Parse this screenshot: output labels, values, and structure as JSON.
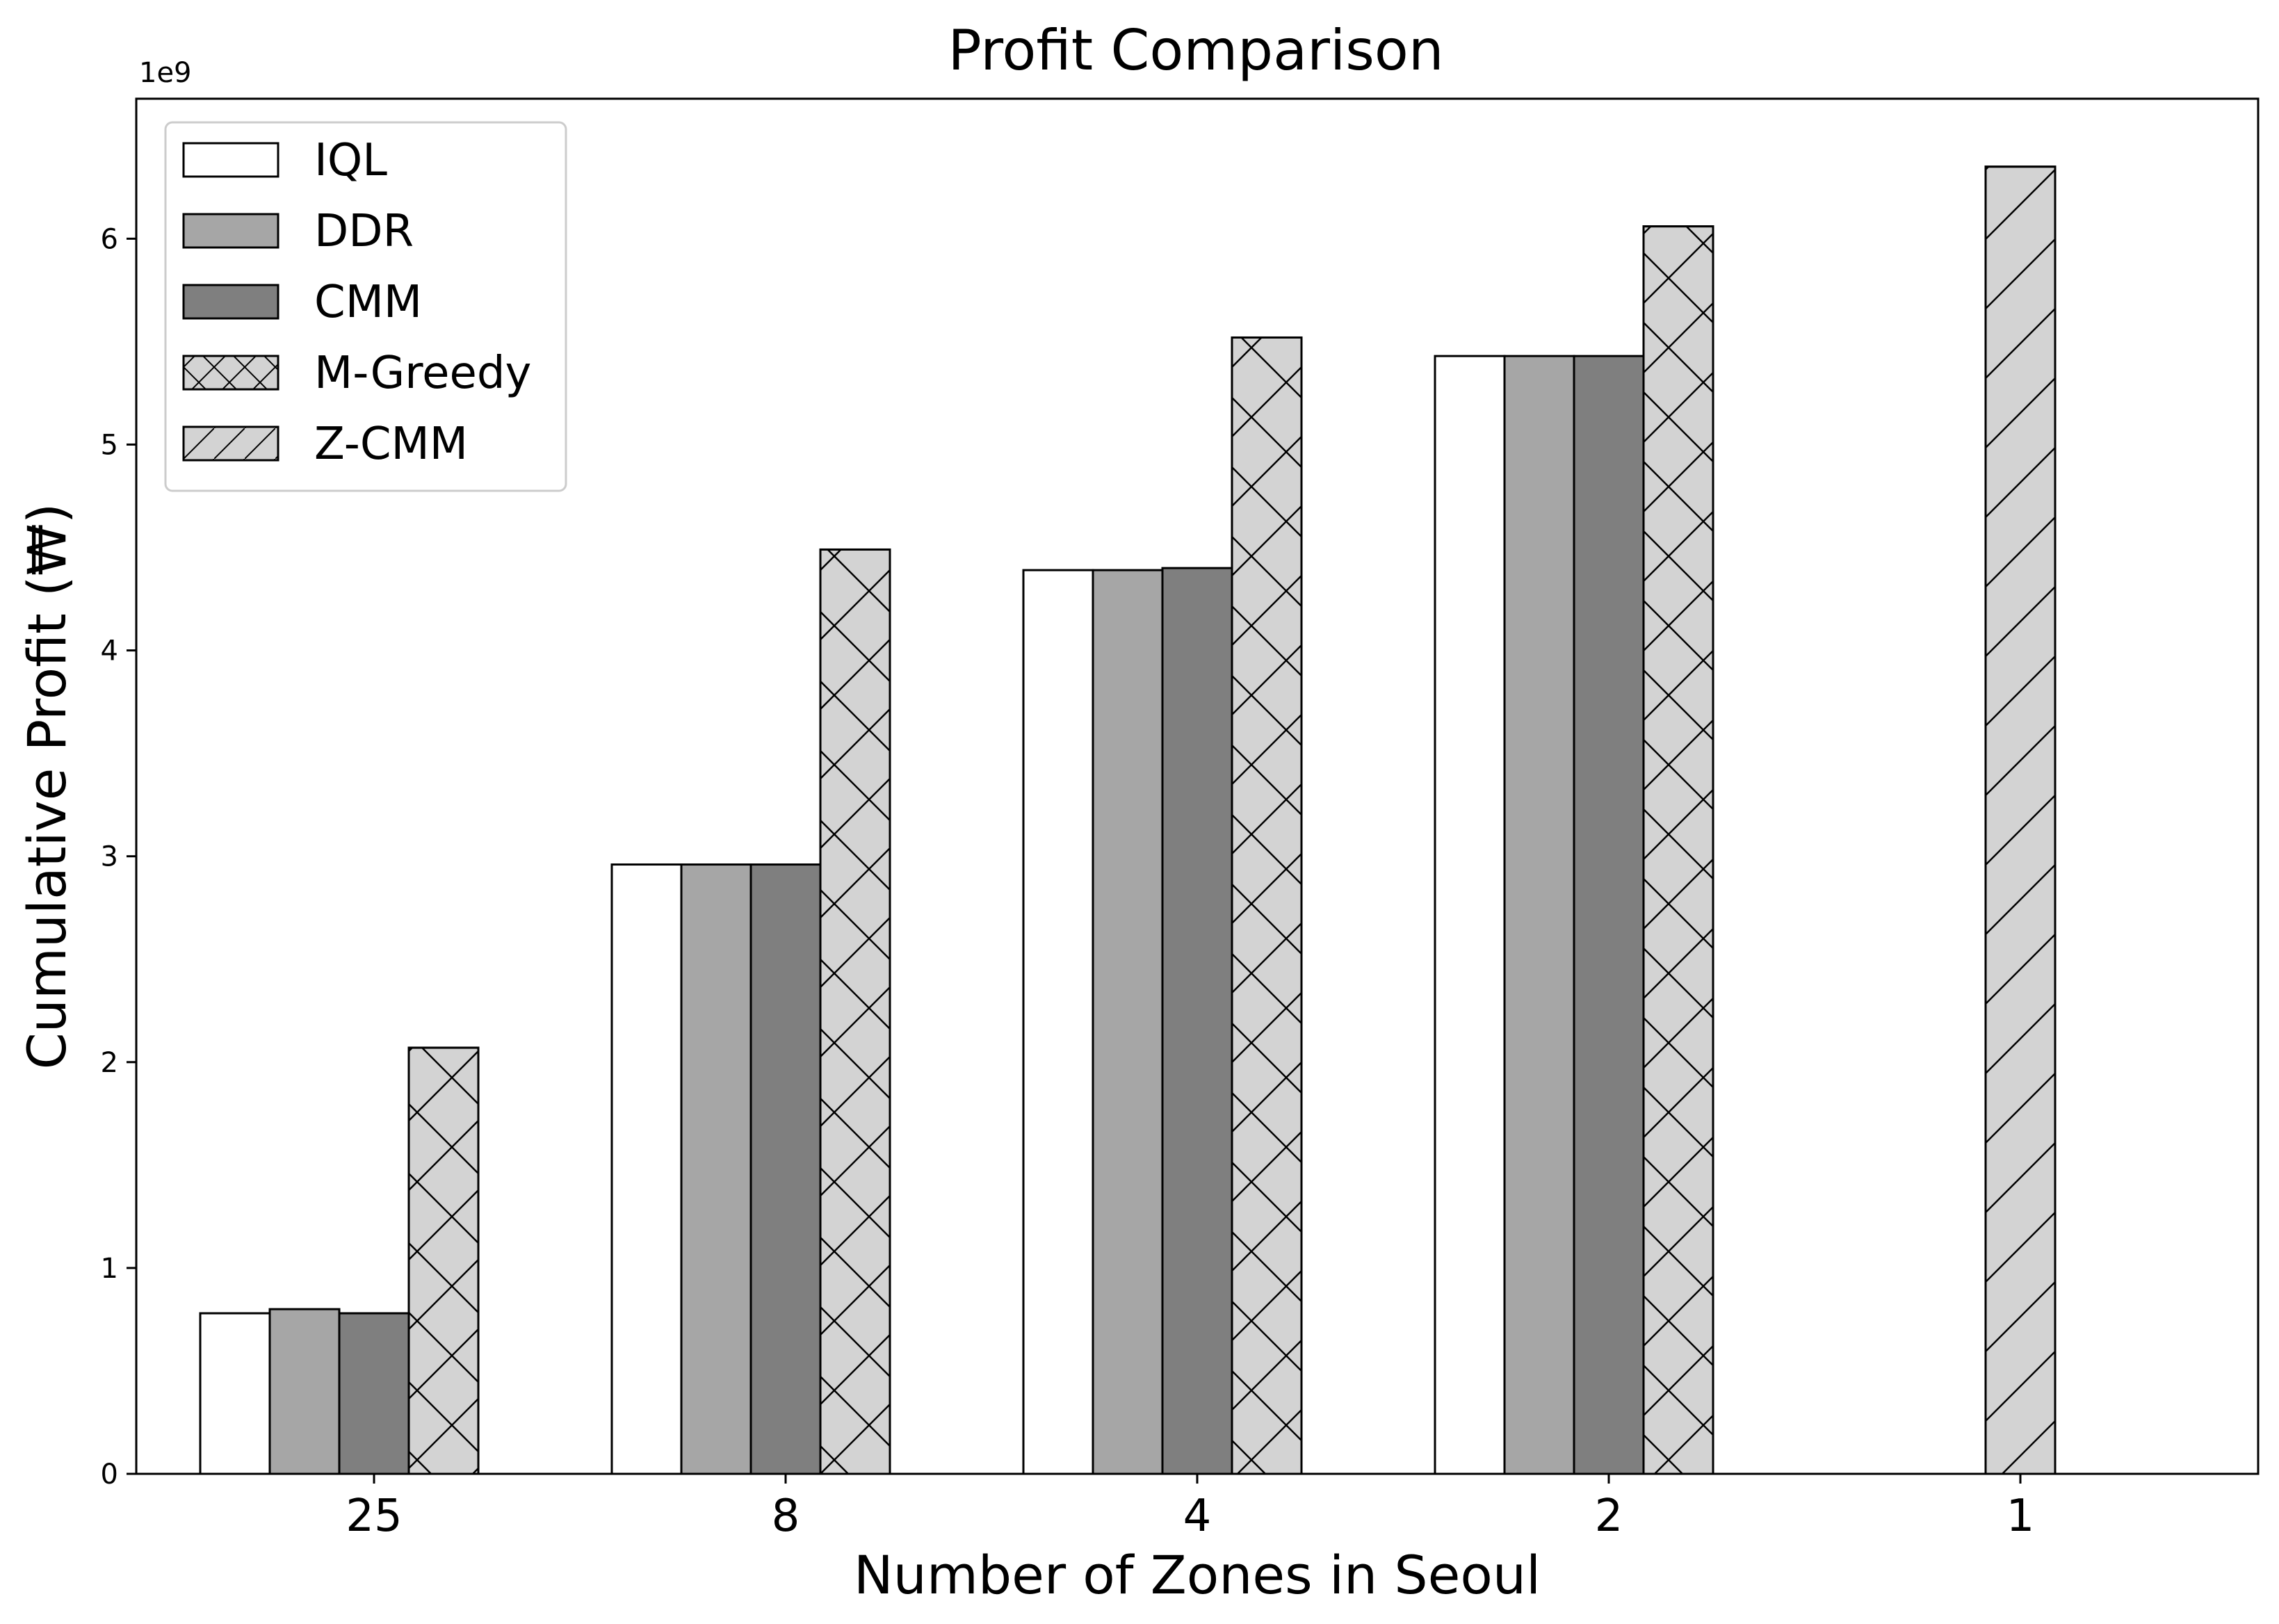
{
  "chart_data": {
    "type": "bar",
    "title": "Profit Comparison",
    "xlabel": "Number of Zones in Seoul",
    "ylabel": "Cumulative Profit (₩)",
    "y_scale_label": "1e9",
    "categories": [
      "25",
      "8",
      "4",
      "2",
      "1"
    ],
    "ylim": [
      0,
      6.68
    ],
    "yticks": [
      0,
      1,
      2,
      3,
      4,
      5,
      6
    ],
    "ytick_labels": [
      "0",
      "1",
      "2",
      "3",
      "4",
      "5",
      "6"
    ],
    "legend_position": "top-left",
    "series": [
      {
        "name": "IQL",
        "fill": "#ffffff",
        "hatch": "none",
        "values": [
          0.78,
          2.96,
          4.39,
          5.43,
          null
        ]
      },
      {
        "name": "DDR",
        "fill": "#a6a6a6",
        "hatch": "none",
        "values": [
          0.8,
          2.96,
          4.39,
          5.43,
          null
        ]
      },
      {
        "name": "CMM",
        "fill": "#7f7f7f",
        "hatch": "none",
        "values": [
          0.78,
          2.96,
          4.4,
          5.43,
          null
        ]
      },
      {
        "name": "M-Greedy",
        "fill": "#d3d3d3",
        "hatch": "cross",
        "values": [
          2.07,
          4.49,
          5.52,
          6.06,
          null
        ]
      },
      {
        "name": "Z-CMM",
        "fill": "#d3d3d3",
        "hatch": "slash",
        "values": [
          null,
          null,
          null,
          null,
          6.35
        ]
      }
    ]
  }
}
